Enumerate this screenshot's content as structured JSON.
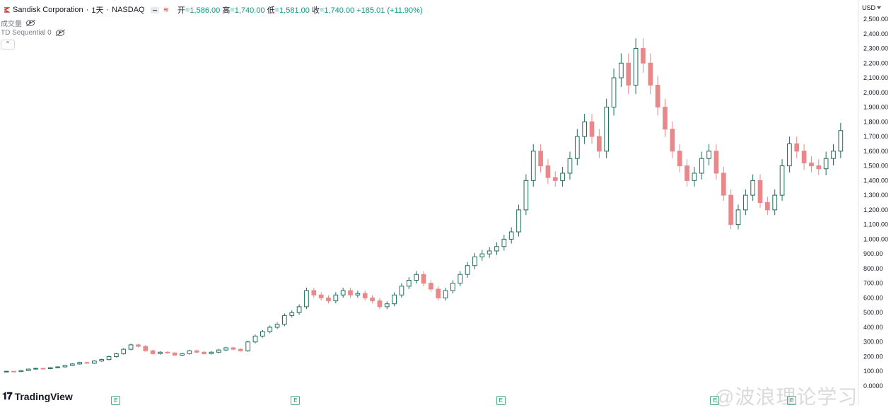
{
  "legend": {
    "symbol": "Sandisk Corporation",
    "interval": "1天",
    "exchange": "NASDAQ",
    "open_label": "开",
    "open": "=1,586.00",
    "high_label": "高",
    "high": "=1,740.00",
    "low_label": "低",
    "low": "=1,581.00",
    "close_label": "收",
    "close": "=1,740.00",
    "change": "+185.01 (+11.90%)"
  },
  "indicators": [
    {
      "label": "成交量"
    },
    {
      "label": "TD Sequential 0"
    }
  ],
  "currency": "USD",
  "branding": "TradingView",
  "watermark": "@波浪理论学习",
  "earnings_marker": "E",
  "colors": {
    "up": "#1f6e5c",
    "down": "#e8888a",
    "up_fill": "#ffffff",
    "axis_text": "#131722"
  },
  "chart_data": {
    "type": "candlestick",
    "title": "Sandisk Corporation · 1天 · NASDAQ",
    "ylabel": "USD",
    "ylim": [
      0,
      2500
    ],
    "y_ticks": [
      "2,500.00",
      "2,400.00",
      "2,300.00",
      "2,200.00",
      "2,100.00",
      "2,000.00",
      "1,900.00",
      "1,800.00",
      "1,700.00",
      "1,600.00",
      "1,500.00",
      "1,400.00",
      "1,300.00",
      "1,200.00",
      "1,100.00",
      "1,000.00",
      "900.00",
      "800.00",
      "700.00",
      "600.00",
      "500.00",
      "400.00",
      "300.00",
      "200.00",
      "100.00",
      "0.0000"
    ],
    "y_tick_values": [
      2500,
      2400,
      2300,
      2200,
      2100,
      2000,
      1900,
      1800,
      1700,
      1600,
      1500,
      1400,
      1300,
      1200,
      1100,
      1000,
      900,
      800,
      700,
      600,
      500,
      400,
      300,
      200,
      100,
      0
    ],
    "last_close": 1740,
    "close_series": [
      100,
      98,
      105,
      115,
      120,
      118,
      125,
      130,
      140,
      150,
      160,
      155,
      170,
      180,
      200,
      220,
      250,
      280,
      270,
      240,
      220,
      230,
      225,
      210,
      220,
      240,
      230,
      220,
      230,
      245,
      260,
      250,
      240,
      300,
      340,
      370,
      400,
      420,
      480,
      500,
      540,
      650,
      620,
      600,
      580,
      620,
      650,
      620,
      630,
      600,
      580,
      540,
      560,
      620,
      680,
      720,
      760,
      700,
      660,
      600,
      650,
      700,
      760,
      820,
      880,
      900,
      920,
      950,
      1000,
      1050,
      1200,
      1400,
      1600,
      1500,
      1420,
      1400,
      1450,
      1550,
      1700,
      1800,
      1700,
      1600,
      1900,
      2100,
      2200,
      2050,
      2300,
      2200,
      2050,
      1900,
      1750,
      1600,
      1500,
      1400,
      1450,
      1550,
      1600,
      1450,
      1300,
      1100,
      1200,
      1300,
      1400,
      1250,
      1200,
      1300,
      1500,
      1650,
      1600,
      1520,
      1500,
      1480,
      1550,
      1600,
      1740
    ],
    "earnings_positions": [
      0.13,
      0.34,
      0.58,
      0.83,
      0.92
    ]
  }
}
